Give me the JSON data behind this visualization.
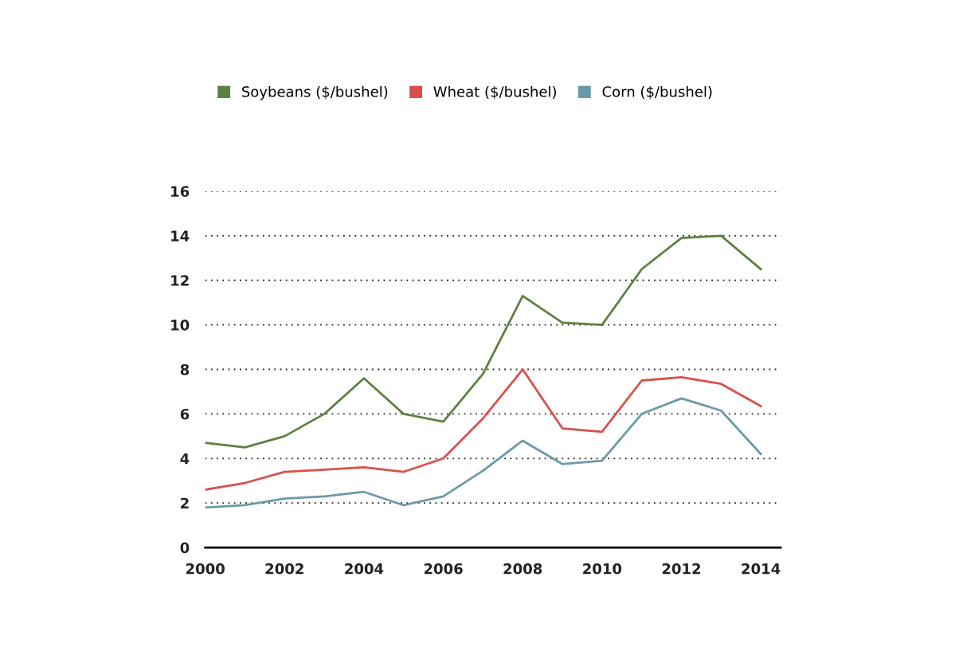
{
  "chart_data": {
    "type": "line",
    "x": [
      2000,
      2001,
      2002,
      2003,
      2004,
      2005,
      2006,
      2007,
      2008,
      2009,
      2010,
      2011,
      2012,
      2013,
      2014
    ],
    "series": [
      {
        "name": "Soybeans ($/bushel)",
        "color": "#5e8040",
        "values": [
          4.7,
          4.5,
          5.0,
          6.0,
          7.6,
          6.0,
          5.65,
          7.8,
          11.3,
          10.1,
          10.0,
          12.5,
          13.9,
          14.0,
          12.5
        ]
      },
      {
        "name": "Wheat ($/bushel)",
        "color": "#d9504a",
        "values": [
          2.6,
          2.9,
          3.4,
          3.5,
          3.6,
          3.4,
          4.0,
          5.8,
          8.0,
          5.35,
          5.2,
          7.5,
          7.65,
          7.35,
          6.35
        ]
      },
      {
        "name": "Corn ($/bushel)",
        "color": "#6a9aa8",
        "values": [
          1.8,
          1.9,
          2.2,
          2.3,
          2.5,
          1.9,
          2.3,
          3.45,
          4.8,
          3.75,
          3.9,
          6.0,
          6.7,
          6.15,
          4.2
        ]
      }
    ],
    "xlim": [
      2000,
      2014.5
    ],
    "xticks": [
      2000,
      2002,
      2004,
      2006,
      2008,
      2010,
      2012,
      2014
    ],
    "ylim": [
      0,
      16
    ],
    "yticks": [
      0,
      2,
      4,
      6,
      8,
      10,
      12,
      14,
      16
    ],
    "grid": "y",
    "legend": "top",
    "marker": "none",
    "line_style": "solid"
  }
}
